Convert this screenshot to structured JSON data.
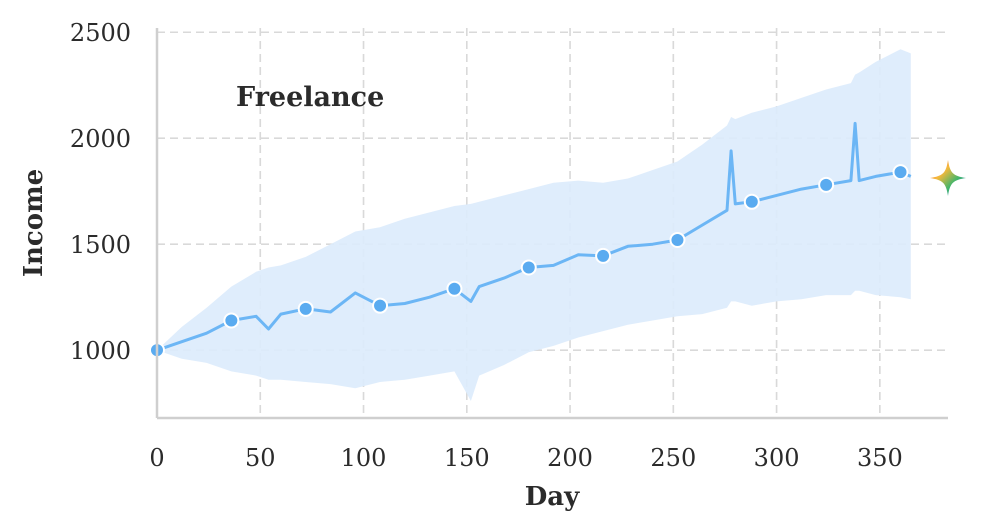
{
  "chart_data": {
    "type": "line",
    "xlabel": "Day",
    "ylabel": "Income",
    "annotation": "Freelance",
    "xlim": [
      0,
      383
    ],
    "ylim": [
      680,
      2520
    ],
    "xticks": [
      0,
      50,
      100,
      150,
      200,
      250,
      300,
      350
    ],
    "yticks": [
      1000,
      1500,
      2000,
      2500
    ],
    "grid": true,
    "colors": {
      "line": "#6cb6f5",
      "band": "#dcebfc",
      "marker": "#5aabf0",
      "marker_edge": "#ffffff"
    },
    "series": [
      {
        "x": [
          0,
          12,
          24,
          36,
          48,
          54,
          60,
          72,
          84,
          96,
          108,
          120,
          132,
          144,
          152,
          156,
          168,
          180,
          192,
          204,
          216,
          228,
          240,
          252,
          264,
          276,
          278,
          280,
          288,
          300,
          312,
          324,
          336,
          338,
          340,
          348,
          360,
          365
        ],
        "y": [
          1000,
          1040,
          1080,
          1140,
          1160,
          1100,
          1170,
          1195,
          1180,
          1270,
          1210,
          1220,
          1250,
          1290,
          1230,
          1300,
          1340,
          1390,
          1400,
          1450,
          1445,
          1490,
          1500,
          1520,
          1590,
          1660,
          1940,
          1690,
          1700,
          1730,
          1760,
          1780,
          1800,
          2070,
          1800,
          1820,
          1840,
          1820
        ],
        "y_lower": [
          1000,
          960,
          940,
          900,
          880,
          860,
          860,
          850,
          840,
          820,
          850,
          860,
          880,
          900,
          760,
          880,
          930,
          990,
          1020,
          1060,
          1090,
          1120,
          1140,
          1160,
          1170,
          1200,
          1230,
          1230,
          1210,
          1230,
          1240,
          1260,
          1260,
          1280,
          1280,
          1260,
          1250,
          1240
        ],
        "y_upper": [
          1000,
          1110,
          1200,
          1300,
          1370,
          1390,
          1400,
          1440,
          1500,
          1560,
          1580,
          1620,
          1650,
          1680,
          1690,
          1700,
          1730,
          1760,
          1790,
          1800,
          1790,
          1810,
          1850,
          1890,
          1970,
          2060,
          2100,
          2090,
          2120,
          2150,
          2190,
          2230,
          2260,
          2300,
          2310,
          2360,
          2420,
          2400
        ],
        "markers_x": [
          0,
          36,
          72,
          108,
          144,
          180,
          216,
          252,
          288,
          324,
          360
        ],
        "markers_y": [
          1000,
          1140,
          1195,
          1210,
          1290,
          1390,
          1445,
          1520,
          1700,
          1780,
          1840
        ]
      }
    ]
  }
}
